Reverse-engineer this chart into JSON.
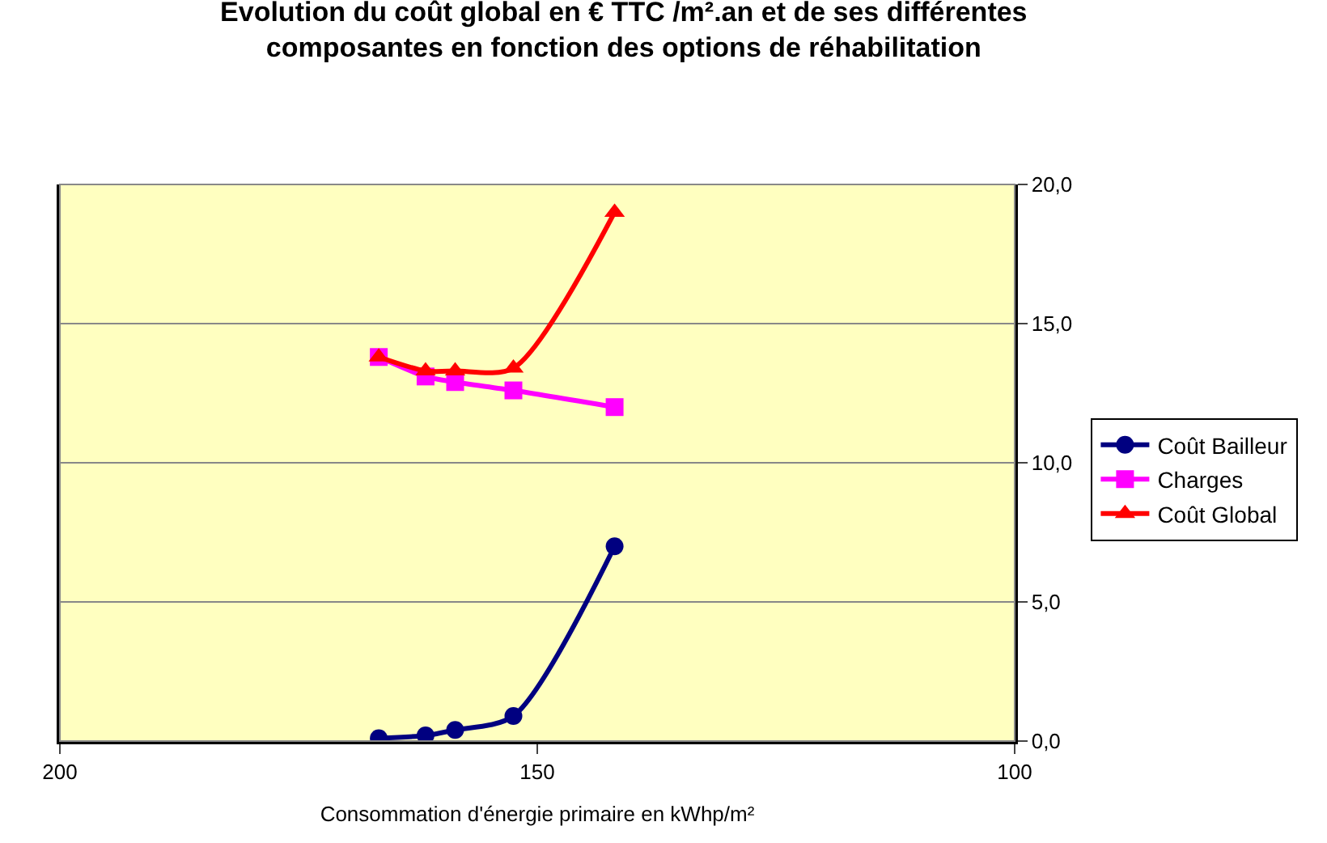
{
  "chart_data": {
    "type": "line",
    "title": "Evolution du coût global en € TTC /m².an et de ses différentes\ncomposantes en fonction des options de réhabilitation",
    "xlabel": "Consommation d'énergie primaire en kWhp/m²",
    "x": [
      166.6,
      161.7,
      158.6,
      152.5,
      141.9
    ],
    "series": [
      {
        "name": "Coût Bailleur",
        "color": "#000080",
        "marker": "circle",
        "values": [
          0.1,
          0.2,
          0.4,
          0.9,
          7.0
        ]
      },
      {
        "name": "Charges",
        "color": "#ff00ff",
        "marker": "square",
        "values": [
          13.8,
          13.1,
          12.9,
          12.6,
          12.0
        ]
      },
      {
        "name": "Coût Global",
        "color": "#ff0000",
        "marker": "triangle",
        "values": [
          13.8,
          13.3,
          13.3,
          13.4,
          19.0
        ]
      }
    ],
    "xlim": [
      200,
      100
    ],
    "xticks": [
      200,
      150,
      100
    ],
    "ylim": [
      0,
      20
    ],
    "yticks": [
      {
        "value": 0,
        "label": "0,0"
      },
      {
        "value": 5,
        "label": "5,0"
      },
      {
        "value": 10,
        "label": "10,0"
      },
      {
        "value": 15,
        "label": "15,0"
      },
      {
        "value": 20,
        "label": "20,0"
      }
    ],
    "grid": "y",
    "legend": "right"
  }
}
